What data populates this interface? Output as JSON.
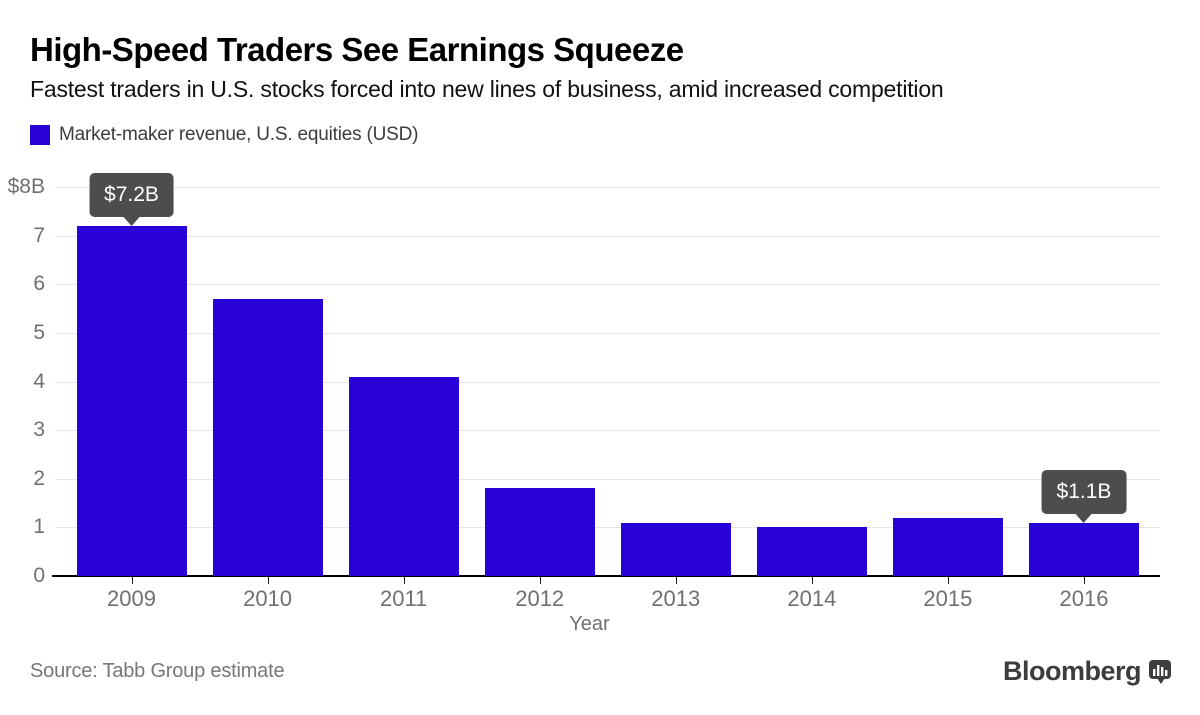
{
  "header": {
    "title": "High-Speed Traders See Earnings Squeeze",
    "subtitle": "Fastest traders in U.S. stocks forced into new lines of business, amid increased competition"
  },
  "legend": {
    "label": "Market-maker revenue, U.S. equities (USD)",
    "swatch_color": "#2802d7"
  },
  "chart_data": {
    "type": "bar",
    "title": "High-Speed Traders See Earnings Squeeze",
    "subtitle": "Fastest traders in U.S. stocks forced into new lines of business, amid increased competition",
    "series_name": "Market-maker revenue, U.S. equities (USD)",
    "categories": [
      "2009",
      "2010",
      "2011",
      "2012",
      "2013",
      "2014",
      "2015",
      "2016"
    ],
    "values": [
      7.2,
      5.7,
      4.1,
      1.8,
      1.1,
      1.0,
      1.2,
      1.1
    ],
    "xlabel": "Year",
    "ylabel": "",
    "ylim": [
      0,
      8
    ],
    "y_tick_labels": [
      "0",
      "1",
      "2",
      "3",
      "4",
      "5",
      "6",
      "7",
      "$8B"
    ],
    "grid": true,
    "legend_position": "top-left",
    "bar_color": "#2802d7",
    "annotations": [
      {
        "category": "2009",
        "label": "$7.2B"
      },
      {
        "category": "2016",
        "label": "$1.1B"
      }
    ]
  },
  "footer": {
    "source": "Source: Tabb Group estimate",
    "brand": "Bloomberg"
  },
  "colors": {
    "bar": "#2802d7",
    "callout_bg": "#4d4d4d",
    "callout_text": "#ffffff",
    "gridline": "#e7e7e7",
    "axis_line": "#000000",
    "axis_label": "#707070",
    "background": "#ffffff"
  }
}
